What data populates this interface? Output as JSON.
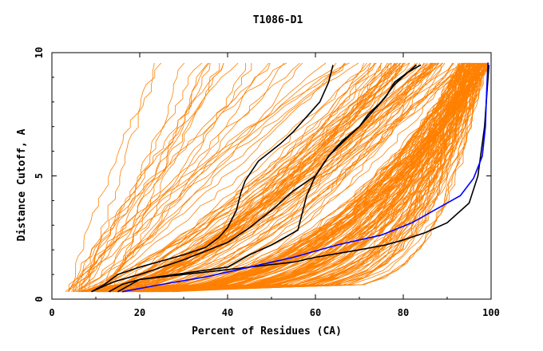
{
  "chart_data": {
    "type": "line",
    "title": "T1086-D1",
    "xlabel": "Percent of Residues (CA)",
    "ylabel": "Distance Cutoff, A",
    "xlim": [
      0,
      100
    ],
    "ylim": [
      0,
      10
    ],
    "xticks": [
      "0",
      "20",
      "40",
      "60",
      "80",
      "100"
    ],
    "yticks": [
      "0",
      "5",
      "10"
    ],
    "grid": false,
    "colors": {
      "models": "#ff8000",
      "reference": "#000000",
      "best": "#0000ff"
    },
    "reference_series": [
      {
        "x": [
          13,
          16,
          20,
          30,
          40,
          50,
          55,
          60,
          65,
          70,
          76,
          80,
          85,
          90,
          95,
          97,
          98.5,
          99.5
        ],
        "y": [
          0.3,
          0.6,
          0.8,
          1.0,
          1.2,
          1.4,
          1.5,
          1.7,
          1.85,
          2.0,
          2.2,
          2.4,
          2.7,
          3.1,
          3.9,
          5.0,
          7.0,
          9.5
        ]
      },
      {
        "x": [
          15,
          20,
          30,
          40,
          45,
          50,
          54,
          56,
          57,
          58,
          60,
          63,
          67,
          70,
          72,
          75,
          78,
          81,
          84
        ],
        "y": [
          0.3,
          0.8,
          1.05,
          1.3,
          1.8,
          2.2,
          2.6,
          2.8,
          3.5,
          4.2,
          5.0,
          5.8,
          6.5,
          7.0,
          7.5,
          8.0,
          8.7,
          9.2,
          9.5
        ]
      },
      {
        "x": [
          9,
          12,
          15,
          20,
          25,
          30,
          35,
          38,
          40,
          42,
          43,
          44,
          47,
          52,
          55,
          58,
          61,
          63,
          64
        ],
        "y": [
          0.3,
          0.6,
          1.0,
          1.3,
          1.55,
          1.8,
          2.1,
          2.5,
          2.9,
          3.6,
          4.3,
          4.8,
          5.6,
          6.3,
          6.8,
          7.4,
          8.0,
          8.8,
          9.5
        ]
      },
      {
        "x": [
          9,
          14,
          20,
          30,
          40,
          45,
          50,
          55,
          60,
          63,
          66,
          70,
          73,
          76,
          78,
          81,
          83
        ],
        "y": [
          0.3,
          0.7,
          1.0,
          1.6,
          2.3,
          2.9,
          3.6,
          4.4,
          5.0,
          5.8,
          6.4,
          7.0,
          7.6,
          8.2,
          8.8,
          9.2,
          9.5
        ]
      }
    ],
    "best_series": {
      "x": [
        16,
        25,
        35,
        45,
        55,
        65,
        75,
        82,
        88,
        93,
        96,
        98,
        98.7,
        99,
        99.3
      ],
      "y": [
        0.3,
        0.6,
        0.9,
        1.3,
        1.7,
        2.2,
        2.6,
        3.1,
        3.7,
        4.2,
        4.9,
        5.8,
        7.0,
        8.5,
        9.6
      ]
    },
    "model_count": 220
  }
}
